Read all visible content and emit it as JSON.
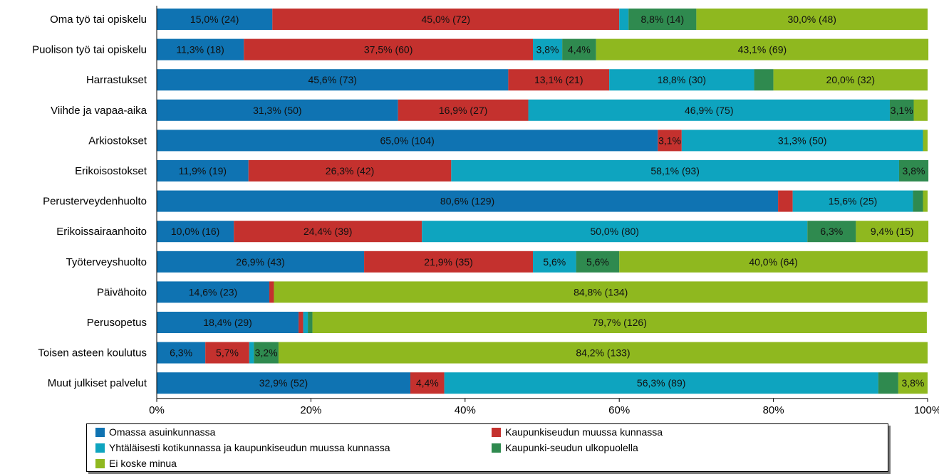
{
  "chart_data": {
    "type": "bar",
    "orientation": "horizontal",
    "stacked": "percent",
    "categories": [
      "Oma työ tai opiskelu",
      "Puolison työ tai opiskelu",
      "Harrastukset",
      "Viihde ja vapaa-aika",
      "Arkiostokset",
      "Erikoisostokset",
      "Perusterveydenhuolto",
      "Erikoissairaanhoito",
      "Työterveyshuolto",
      "Päivähoito",
      "Perusopetus",
      "Toisen asteen koulutus",
      "Muut julkiset palvelut"
    ],
    "series": [
      {
        "name": "Omassa asuinkunnassa",
        "color": "#0f73b2",
        "values": [
          15.0,
          11.3,
          45.6,
          31.3,
          65.0,
          11.9,
          80.6,
          10.0,
          26.9,
          14.6,
          18.4,
          6.3,
          32.9
        ],
        "labels": [
          "15,0% (24)",
          "11,3% (18)",
          "45,6% (73)",
          "31,3% (50)",
          "65,0% (104)",
          "11,9% (19)",
          "80,6% (129)",
          "10,0% (16)",
          "26,9% (43)",
          "14,6% (23)",
          "18,4% (29)",
          "6,3%",
          "32,9% (52)"
        ]
      },
      {
        "name": "Kaupunkiseudun muussa kunnassa",
        "color": "#c4312e",
        "values": [
          45.0,
          37.5,
          13.1,
          16.9,
          3.1,
          26.3,
          1.9,
          24.4,
          21.9,
          0.6,
          0.6,
          5.7,
          4.4
        ],
        "labels": [
          "45,0% (72)",
          "37,5% (60)",
          "13,1% (21)",
          "16,9% (27)",
          "3,1%",
          "26,3% (42)",
          "",
          "24,4% (39)",
          "21,9% (35)",
          "",
          "",
          "5,7%",
          "4,4%"
        ]
      },
      {
        "name": "Yhtäläisesti kotikunnassa ja kaupunkiseudun muussa kunnassa",
        "color": "#0ea4bf",
        "values": [
          1.2,
          3.8,
          18.8,
          46.9,
          31.3,
          58.1,
          15.6,
          50.0,
          5.6,
          0.0,
          0.6,
          0.6,
          56.3
        ],
        "labels": [
          "",
          "3,8%",
          "18,8% (30)",
          "46,9% (75)",
          "31,3% (50)",
          "58,1% (93)",
          "15,6% (25)",
          "50,0% (80)",
          "5,6%",
          "",
          "",
          "",
          "56,3% (89)"
        ]
      },
      {
        "name": "Kaupunki-seudun ulkopuolella",
        "color": "#2f8a4f",
        "values": [
          8.8,
          4.4,
          2.5,
          3.1,
          0.0,
          3.8,
          1.3,
          6.3,
          5.6,
          0.0,
          0.6,
          3.2,
          2.6
        ],
        "labels": [
          "8,8% (14)",
          "4,4%",
          "",
          "3,1%",
          "",
          "3,8%",
          "",
          "6,3%",
          "5,6%",
          "",
          "",
          "3,2%",
          ""
        ]
      },
      {
        "name": "Ei koske minua",
        "color": "#8fb81f",
        "values": [
          30.0,
          43.1,
          20.0,
          1.8,
          0.6,
          0.0,
          0.6,
          9.4,
          40.0,
          84.8,
          79.7,
          84.2,
          3.8
        ],
        "labels": [
          "30,0% (48)",
          "43,1% (69)",
          "20,0% (32)",
          "",
          "",
          "",
          "",
          "9,4% (15)",
          "40,0% (64)",
          "84,8% (134)",
          "79,7% (126)",
          "84,2% (133)",
          "3,8%"
        ]
      }
    ],
    "x_ticks": [
      "0%",
      "20%",
      "40%",
      "60%",
      "80%",
      "100%"
    ],
    "xlim": [
      0,
      100
    ],
    "grid": false,
    "legend_position": "bottom"
  }
}
